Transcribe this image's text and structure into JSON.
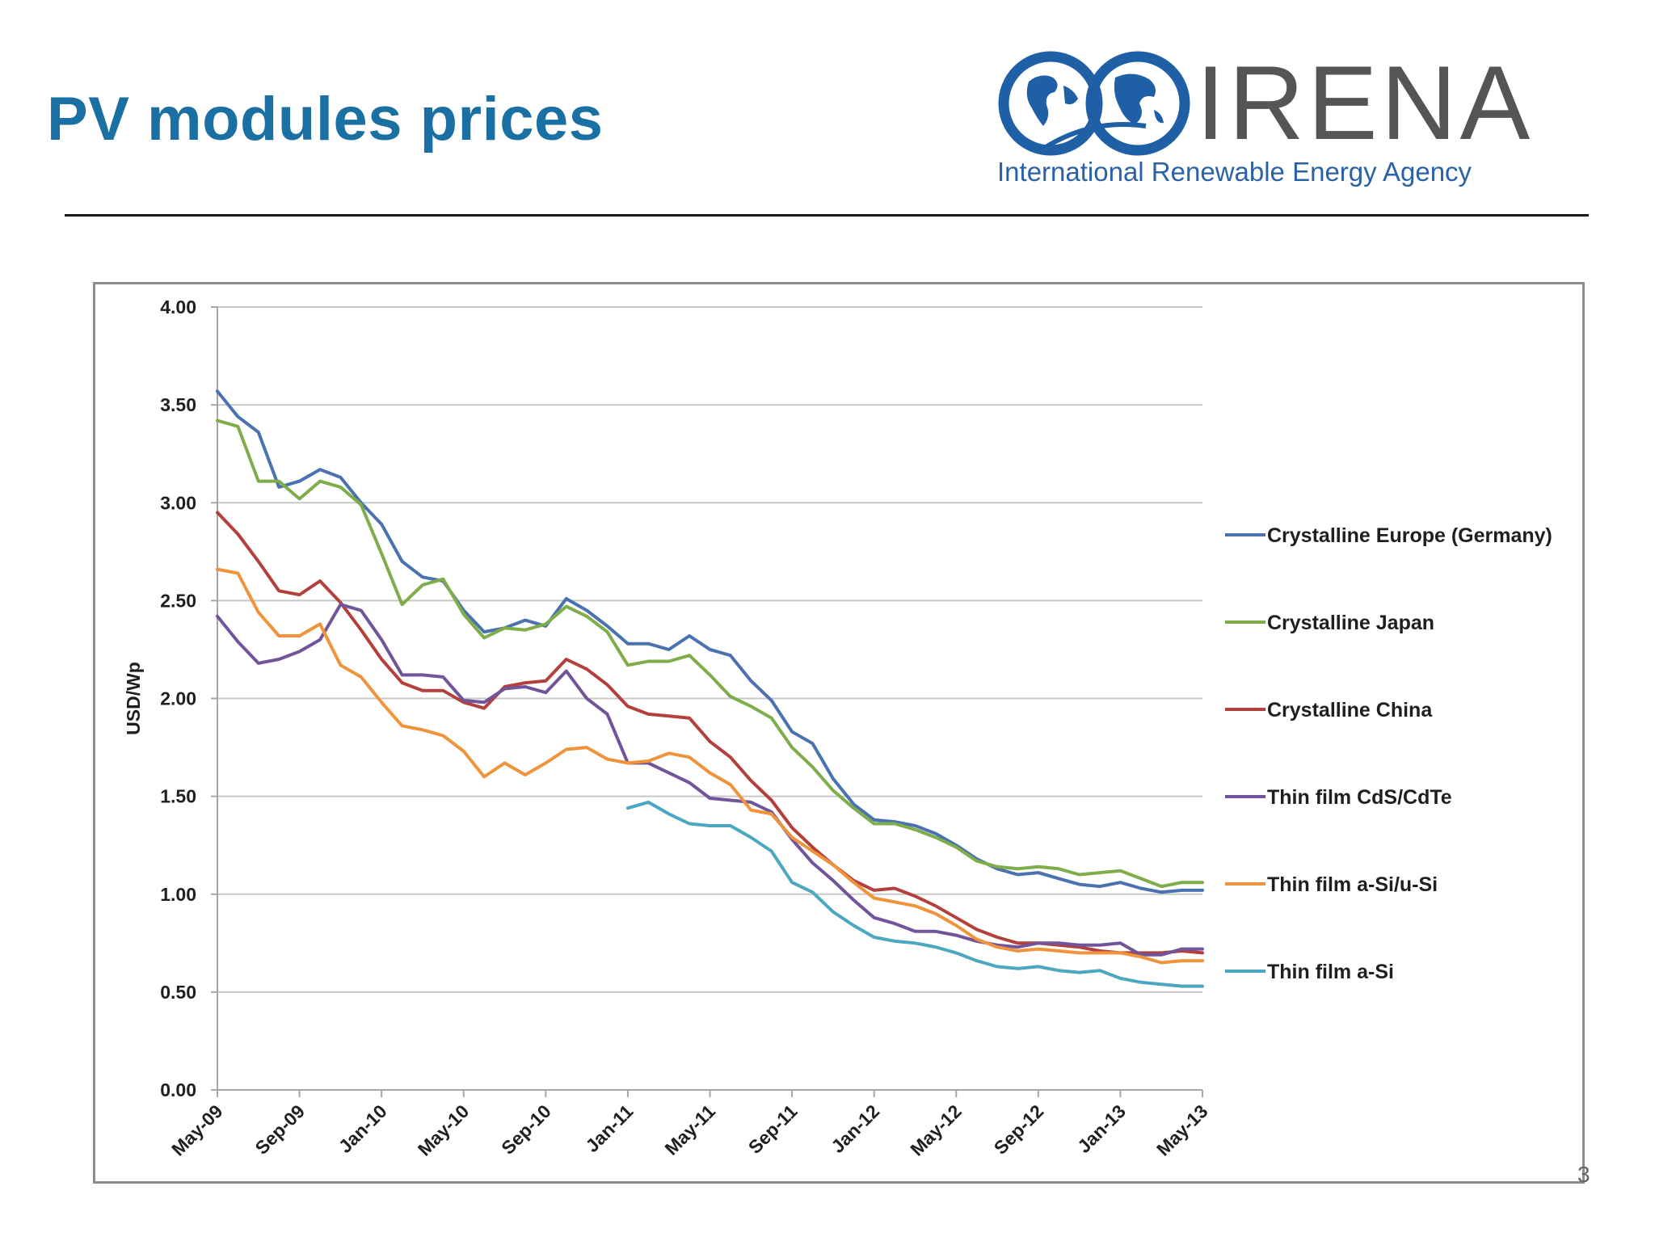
{
  "slide": {
    "title": "PV modules prices",
    "page_number": "3"
  },
  "logo": {
    "name": "IRENA",
    "tagline": "International Renewable Energy Agency",
    "globe_color": "#1f5fa6",
    "text_color": "#555555",
    "tagline_color": "#2a62a8"
  },
  "colors": {
    "title": "#1a6fa3",
    "rule": "#1a1a1a",
    "grid": "#c8c8c8",
    "axis": "#a6a6a6"
  },
  "chart_data": {
    "type": "line",
    "ylabel": "USD/Wp",
    "xlabel": "",
    "ylim": [
      0,
      4
    ],
    "yticks": [
      "0.00",
      "0.50",
      "1.00",
      "1.50",
      "2.00",
      "2.50",
      "3.00",
      "3.50",
      "4.00"
    ],
    "xtick_labels": [
      "May-09",
      "Sep-09",
      "Jan-10",
      "May-10",
      "Sep-10",
      "Jan-11",
      "May-11",
      "Sep-11",
      "Jan-12",
      "May-12",
      "Sep-12",
      "Jan-13",
      "May-13"
    ],
    "xlim": [
      0,
      48
    ],
    "grid": "horizontal",
    "legend_position": "right",
    "series": [
      {
        "name": "Crystalline Europe (Germany)",
        "color": "#4a72b0",
        "x_start": 0,
        "values": [
          3.57,
          3.44,
          3.36,
          3.08,
          3.11,
          3.17,
          3.13,
          3.0,
          2.89,
          2.7,
          2.62,
          2.6,
          2.45,
          2.34,
          2.36,
          2.4,
          2.37,
          2.51,
          2.45,
          2.37,
          2.28,
          2.28,
          2.25,
          2.32,
          2.25,
          2.22,
          2.09,
          1.99,
          1.83,
          1.77,
          1.59,
          1.46,
          1.38,
          1.37,
          1.35,
          1.31,
          1.25,
          1.18,
          1.13,
          1.1,
          1.11,
          1.08,
          1.05,
          1.04,
          1.06,
          1.03,
          1.01,
          1.02,
          1.02
        ]
      },
      {
        "name": "Crystalline Japan",
        "color": "#7fad4a",
        "x_start": 0,
        "values": [
          3.42,
          3.39,
          3.11,
          3.11,
          3.02,
          3.11,
          3.08,
          2.99,
          2.74,
          2.48,
          2.58,
          2.61,
          2.43,
          2.31,
          2.36,
          2.35,
          2.38,
          2.47,
          2.42,
          2.34,
          2.17,
          2.19,
          2.19,
          2.22,
          2.12,
          2.01,
          1.96,
          1.9,
          1.75,
          1.65,
          1.53,
          1.44,
          1.36,
          1.36,
          1.33,
          1.29,
          1.24,
          1.17,
          1.14,
          1.13,
          1.14,
          1.13,
          1.1,
          1.11,
          1.12,
          1.08,
          1.04,
          1.06,
          1.06
        ]
      },
      {
        "name": "Crystalline China",
        "color": "#b3403c",
        "x_start": 0,
        "values": [
          2.95,
          2.84,
          2.7,
          2.55,
          2.53,
          2.6,
          2.49,
          2.35,
          2.2,
          2.08,
          2.04,
          2.04,
          1.98,
          1.95,
          2.06,
          2.08,
          2.09,
          2.2,
          2.15,
          2.07,
          1.96,
          1.92,
          1.91,
          1.9,
          1.78,
          1.7,
          1.58,
          1.48,
          1.34,
          1.24,
          1.15,
          1.07,
          1.02,
          1.03,
          0.99,
          0.94,
          0.88,
          0.82,
          0.78,
          0.75,
          0.75,
          0.74,
          0.73,
          0.71,
          0.7,
          0.7,
          0.7,
          0.71,
          0.7
        ]
      },
      {
        "name": "Thin film CdS/CdTe",
        "color": "#72549a",
        "x_start": 0,
        "values": [
          2.42,
          2.29,
          2.18,
          2.2,
          2.24,
          2.3,
          2.48,
          2.45,
          2.3,
          2.12,
          2.12,
          2.11,
          1.99,
          1.98,
          2.05,
          2.06,
          2.03,
          2.14,
          2.0,
          1.92,
          1.67,
          1.67,
          1.62,
          1.57,
          1.49,
          1.48,
          1.47,
          1.42,
          1.28,
          1.16,
          1.07,
          0.97,
          0.88,
          0.85,
          0.81,
          0.81,
          0.79,
          0.76,
          0.74,
          0.73,
          0.75,
          0.75,
          0.74,
          0.74,
          0.75,
          0.69,
          0.69,
          0.72,
          0.72
        ]
      },
      {
        "name": "Thin film a-Si/u-Si",
        "color": "#f0943b",
        "x_start": 0,
        "values": [
          2.66,
          2.64,
          2.44,
          2.32,
          2.32,
          2.38,
          2.17,
          2.11,
          1.98,
          1.86,
          1.84,
          1.81,
          1.73,
          1.6,
          1.67,
          1.61,
          1.67,
          1.74,
          1.75,
          1.69,
          1.67,
          1.68,
          1.72,
          1.7,
          1.62,
          1.56,
          1.43,
          1.41,
          1.29,
          1.22,
          1.15,
          1.06,
          0.98,
          0.96,
          0.94,
          0.9,
          0.84,
          0.77,
          0.73,
          0.71,
          0.72,
          0.71,
          0.7,
          0.7,
          0.7,
          0.68,
          0.65,
          0.66,
          0.66
        ]
      },
      {
        "name": "Thin film a-Si",
        "color": "#4ba8c0",
        "x_start": 20,
        "values": [
          1.44,
          1.47,
          1.41,
          1.36,
          1.35,
          1.35,
          1.29,
          1.22,
          1.06,
          1.01,
          0.91,
          0.84,
          0.78,
          0.76,
          0.75,
          0.73,
          0.7,
          0.66,
          0.63,
          0.62,
          0.63,
          0.61,
          0.6,
          0.61,
          0.57,
          0.55,
          0.54,
          0.53,
          0.53
        ]
      }
    ]
  }
}
